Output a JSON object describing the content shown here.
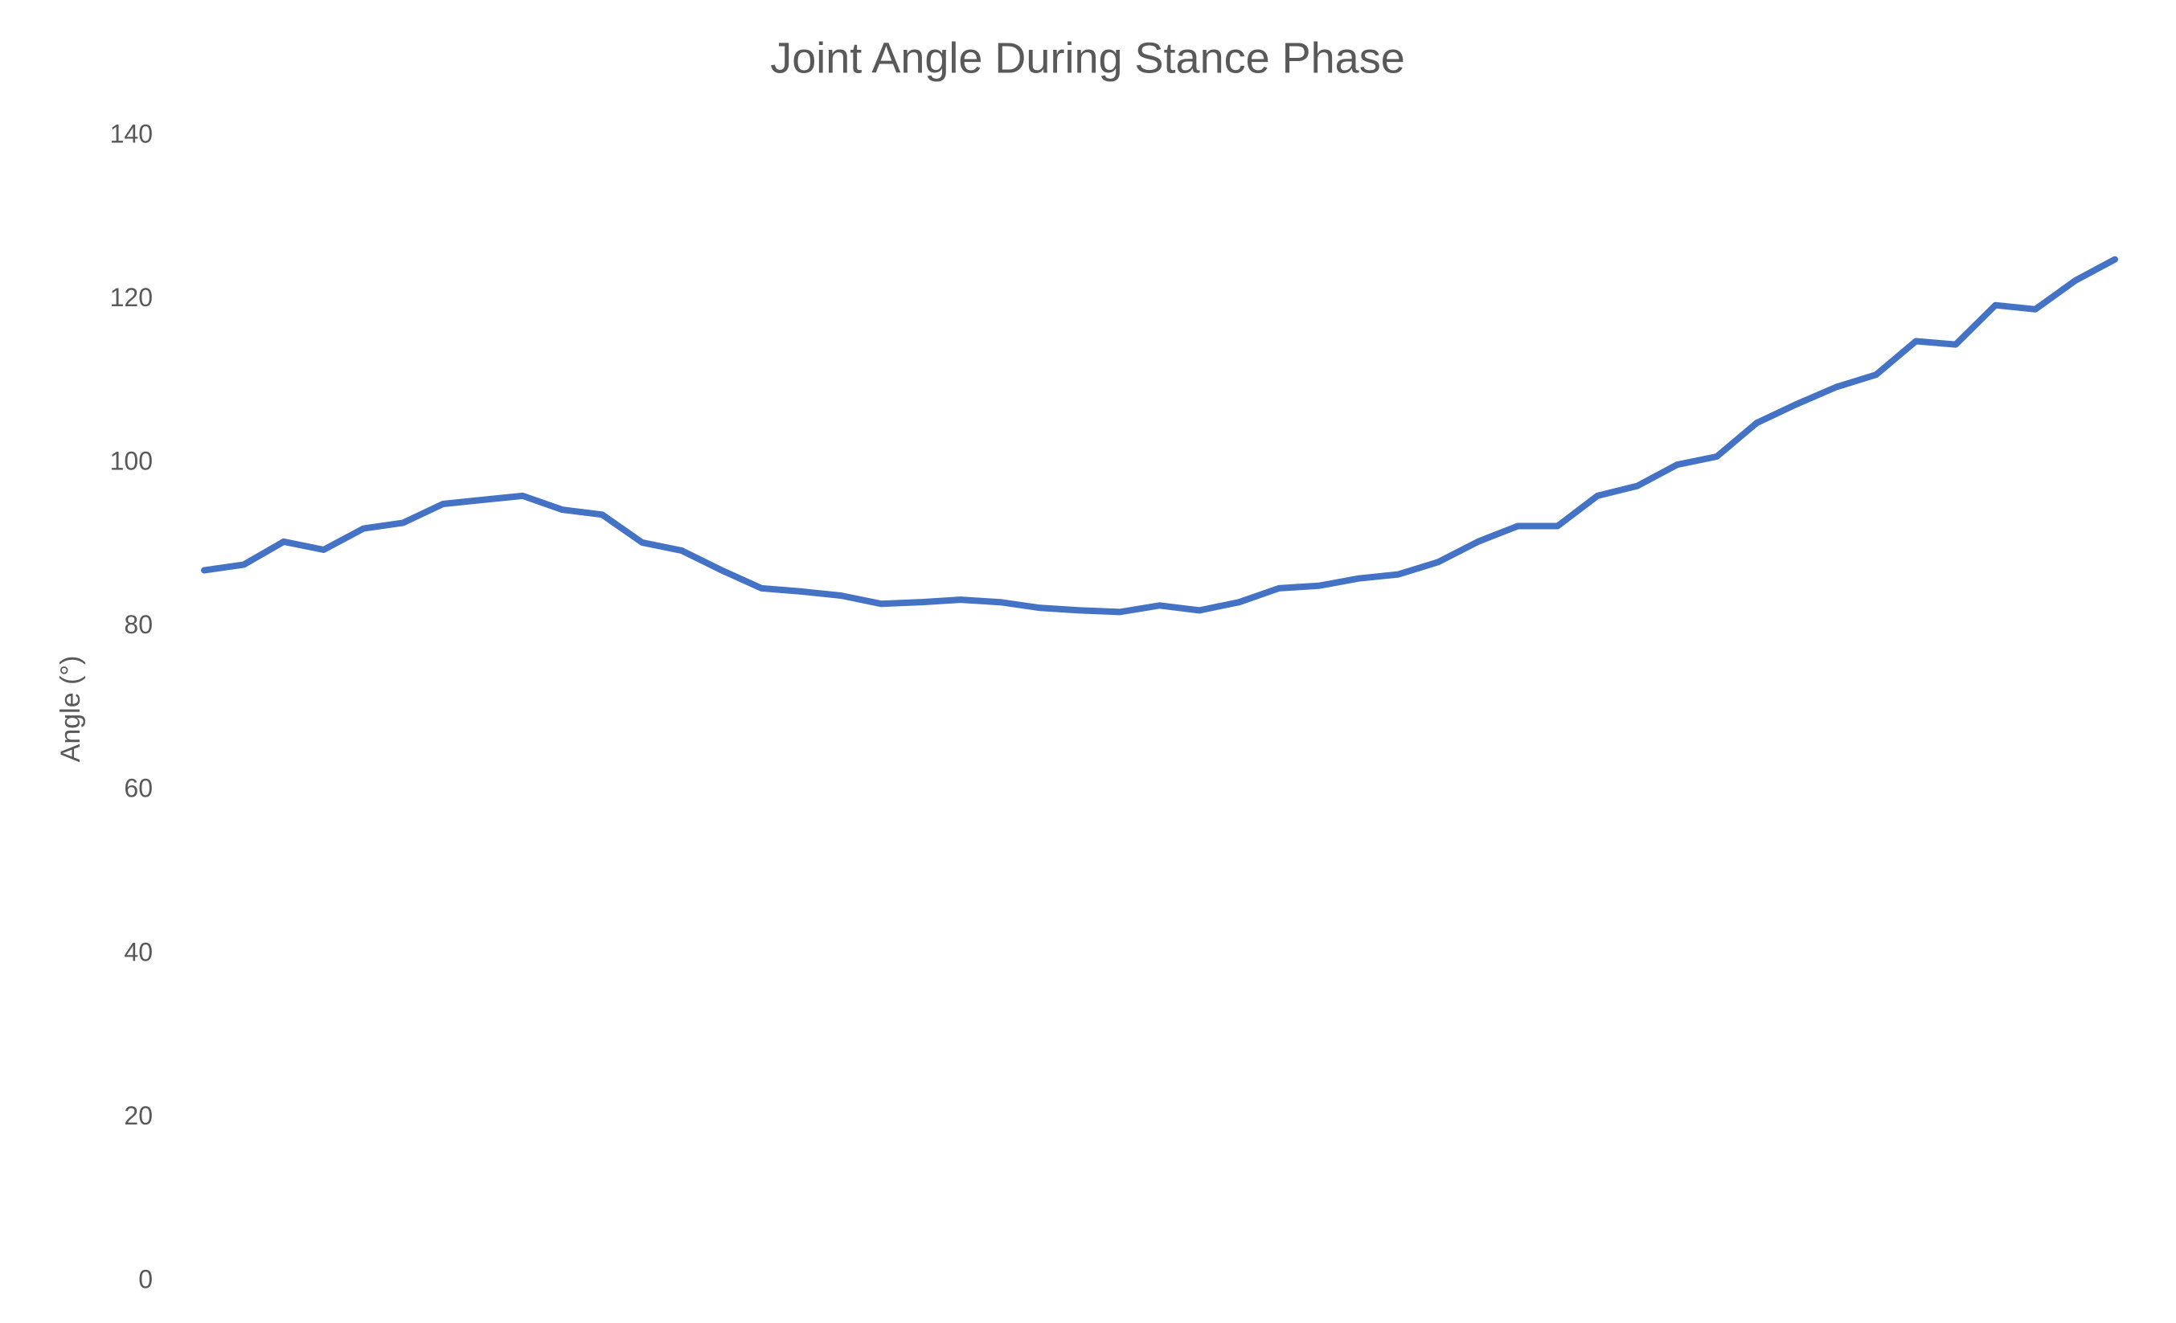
{
  "chart_data": {
    "type": "line",
    "title": "Joint Angle During Stance Phase",
    "y_label": "Angle (°)",
    "series": [
      {
        "name": "Angle",
        "color": "#4472c4",
        "values": [
          86.9,
          87.6,
          90.4,
          89.4,
          92.0,
          92.7,
          95.0,
          95.5,
          96.0,
          94.3,
          93.7,
          90.3,
          89.3,
          86.9,
          84.7,
          84.3,
          83.8,
          82.8,
          83.0,
          83.3,
          83.0,
          82.3,
          82.0,
          81.8,
          82.6,
          82.0,
          83.0,
          84.7,
          85.0,
          85.9,
          86.4,
          87.9,
          90.4,
          92.3,
          92.3,
          96.0,
          97.2,
          99.8,
          100.8,
          104.9,
          107.2,
          109.3,
          110.8,
          114.9,
          114.5,
          119.3,
          118.8,
          122.3,
          124.9
        ]
      }
    ],
    "ylim": [
      0,
      140
    ],
    "yticks": [
      0,
      20,
      40,
      60,
      80,
      100,
      120,
      140
    ],
    "grid": false,
    "legend": false
  }
}
